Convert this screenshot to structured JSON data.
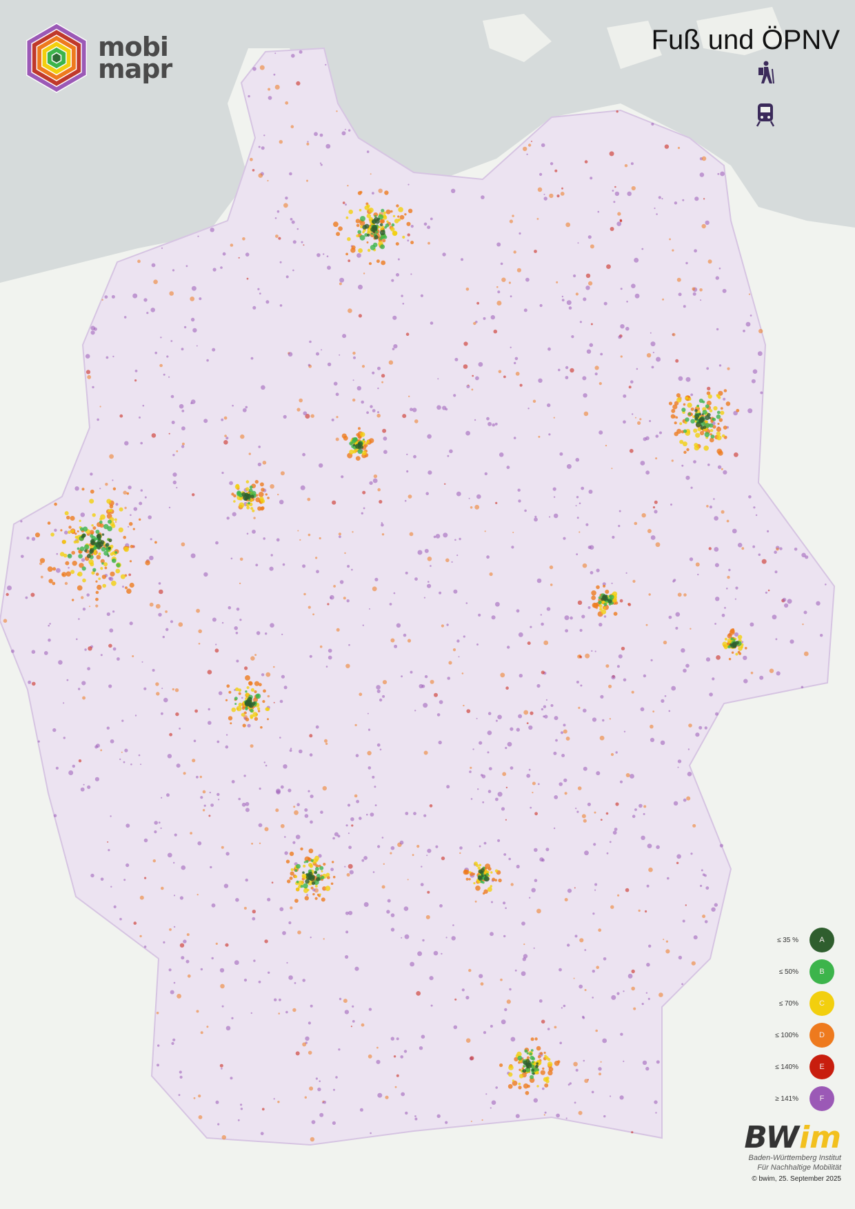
{
  "brand": {
    "logo_line1": "mobi",
    "logo_line2": "mapr",
    "hex_colors": [
      "#9b59b6",
      "#c0392b",
      "#ee7a1e",
      "#f2cf0e",
      "#3cb44b",
      "#2f6b35"
    ]
  },
  "title": "Fuß und ÖPNV",
  "modes": [
    {
      "icon": "hiker-icon"
    },
    {
      "icon": "train-icon"
    }
  ],
  "colors": {
    "sea": "#d6dbdb",
    "land": "#f1f3ef",
    "base_tint": "#d9c6e8"
  },
  "legend": [
    {
      "label": "≤ 35 %",
      "grade": "A",
      "color": "#2f5e2e"
    },
    {
      "label": "≤ 50%",
      "grade": "B",
      "color": "#3cb44b"
    },
    {
      "label": "≤ 70%",
      "grade": "C",
      "color": "#f2cf0e"
    },
    {
      "label": "≤ 100%",
      "grade": "D",
      "color": "#ee7a1e"
    },
    {
      "label": "≤ 140%",
      "grade": "E",
      "color": "#c81e0e"
    },
    {
      "label": "≥ 141%",
      "grade": "F",
      "color": "#9b59b6"
    }
  ],
  "footer": {
    "logo_bw": "BW",
    "logo_im": "im",
    "institute_line1": "Baden-Württemberg Institut",
    "institute_line2": "Für Nachhaltige Mobilität",
    "copyright": "© bwim, 25. September 2025"
  }
}
